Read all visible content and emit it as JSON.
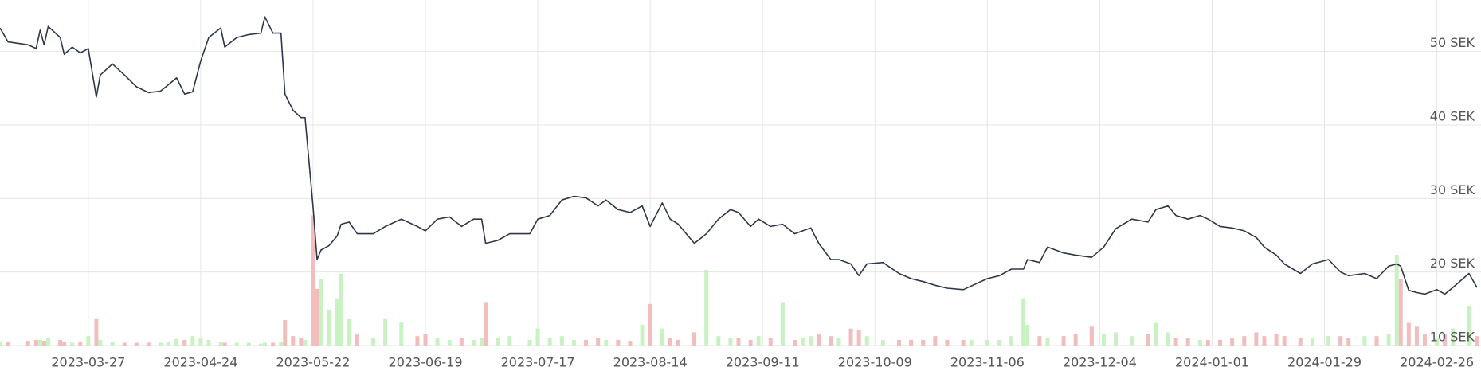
{
  "chart_data": {
    "type": "line",
    "x": [
      "2023-03-05",
      "2023-03-07",
      "2023-03-12",
      "2023-03-14",
      "2023-03-15",
      "2023-03-16",
      "2023-03-17",
      "2023-03-20",
      "2023-03-21",
      "2023-03-23",
      "2023-03-25",
      "2023-03-27",
      "2023-03-29",
      "2023-03-30",
      "2023-04-02",
      "2023-04-05",
      "2023-04-08",
      "2023-04-11",
      "2023-04-14",
      "2023-04-16",
      "2023-04-18",
      "2023-04-20",
      "2023-04-22",
      "2023-04-24",
      "2023-04-26",
      "2023-04-29",
      "2023-04-30",
      "2023-05-03",
      "2023-05-06",
      "2023-05-09",
      "2023-05-10",
      "2023-05-12",
      "2023-05-14",
      "2023-05-15",
      "2023-05-17",
      "2023-05-19",
      "2023-05-20",
      "2023-05-22",
      "2023-05-23",
      "2023-05-24",
      "2023-05-26",
      "2023-05-28",
      "2023-05-29",
      "2023-05-31",
      "2023-06-02",
      "2023-06-06",
      "2023-06-09",
      "2023-06-13",
      "2023-06-17",
      "2023-06-19",
      "2023-06-22",
      "2023-06-25",
      "2023-06-28",
      "2023-07-01",
      "2023-07-03",
      "2023-07-04",
      "2023-07-07",
      "2023-07-10",
      "2023-07-15",
      "2023-07-17",
      "2023-07-20",
      "2023-07-23",
      "2023-07-26",
      "2023-07-29",
      "2023-08-01",
      "2023-08-03",
      "2023-08-06",
      "2023-08-09",
      "2023-08-12",
      "2023-08-14",
      "2023-08-17",
      "2023-08-19",
      "2023-08-21",
      "2023-08-25",
      "2023-08-28",
      "2023-08-31",
      "2023-09-03",
      "2023-09-05",
      "2023-09-08",
      "2023-09-10",
      "2023-09-13",
      "2023-09-16",
      "2023-09-19",
      "2023-09-21",
      "2023-09-23",
      "2023-09-25",
      "2023-09-28",
      "2023-09-30",
      "2023-10-03",
      "2023-10-05",
      "2023-10-07",
      "2023-10-11",
      "2023-10-15",
      "2023-10-18",
      "2023-10-21",
      "2023-10-24",
      "2023-10-27",
      "2023-10-31",
      "2023-11-02",
      "2023-11-06",
      "2023-11-09",
      "2023-11-12",
      "2023-11-15",
      "2023-11-16",
      "2023-11-19",
      "2023-11-21",
      "2023-11-25",
      "2023-11-28",
      "2023-12-02",
      "2023-12-05",
      "2023-12-08",
      "2023-12-12",
      "2023-12-16",
      "2023-12-18",
      "2023-12-21",
      "2023-12-23",
      "2023-12-26",
      "2023-12-29",
      "2023-12-31",
      "2024-01-03",
      "2024-01-06",
      "2024-01-09",
      "2024-01-12",
      "2024-01-14",
      "2024-01-17",
      "2024-01-19",
      "2024-01-23",
      "2024-01-26",
      "2024-01-30",
      "2024-02-02",
      "2024-02-04",
      "2024-02-08",
      "2024-02-11",
      "2024-02-14",
      "2024-02-16",
      "2024-02-17",
      "2024-02-19",
      "2024-02-21",
      "2024-02-23",
      "2024-02-26",
      "2024-02-28",
      "2024-03-01",
      "2024-03-05",
      "2024-03-07"
    ],
    "series": [
      {
        "color": "#2d3748",
        "values": [
          53.2,
          51.3,
          50.9,
          50.4,
          52.9,
          50.9,
          53.4,
          51.9,
          49.6,
          50.6,
          49.8,
          50.4,
          43.8,
          46.8,
          48.3,
          46.8,
          45.2,
          44.4,
          44.6,
          45.5,
          46.4,
          44.2,
          44.5,
          48.7,
          51.9,
          53.2,
          50.6,
          51.9,
          52.3,
          52.5,
          54.7,
          52.5,
          52.5,
          44.2,
          42.0,
          41.0,
          41.0,
          28.8,
          21.7,
          23.0,
          23.6,
          24.9,
          26.5,
          26.8,
          25.2,
          25.2,
          26.2,
          27.2,
          26.2,
          25.6,
          27.2,
          27.5,
          26.2,
          27.2,
          27.2,
          23.9,
          24.3,
          25.2,
          25.2,
          27.2,
          27.7,
          29.8,
          30.3,
          30.1,
          29.0,
          29.8,
          28.5,
          28.1,
          29.0,
          26.2,
          29.4,
          27.2,
          26.5,
          23.9,
          25.2,
          27.2,
          28.5,
          28.1,
          26.2,
          27.2,
          26.2,
          26.5,
          25.2,
          25.6,
          26.0,
          23.9,
          21.7,
          21.7,
          21.1,
          19.5,
          21.1,
          21.3,
          19.8,
          19.1,
          18.7,
          18.2,
          17.8,
          17.6,
          18.1,
          19.1,
          19.5,
          20.4,
          20.4,
          21.7,
          21.3,
          23.4,
          22.6,
          22.3,
          22.0,
          23.4,
          25.9,
          27.2,
          26.8,
          28.5,
          29.0,
          27.7,
          27.2,
          27.7,
          27.2,
          26.2,
          26.0,
          25.6,
          24.7,
          23.4,
          22.3,
          21.1,
          19.8,
          21.1,
          21.7,
          20.0,
          19.5,
          19.8,
          19.1,
          20.8,
          21.1,
          20.8,
          17.5,
          17.2,
          17.0,
          17.6,
          17.0,
          17.9,
          19.8,
          17.9
        ]
      }
    ],
    "volume": {
      "up_color": "#c9f2c3",
      "down_color": "#f2bdbd",
      "values": [
        4,
        4,
        5,
        6,
        6,
        5,
        8,
        6,
        4,
        3,
        4,
        10,
        28,
        6,
        4,
        3,
        3,
        3,
        3,
        4,
        7,
        6,
        10,
        8,
        6,
        4,
        3,
        3,
        3,
        2,
        3,
        3,
        4,
        27,
        10,
        8,
        6,
        138,
        60,
        70,
        38,
        50,
        76,
        28,
        12,
        8,
        28,
        25,
        10,
        12,
        8,
        6,
        8,
        6,
        8,
        46,
        8,
        10,
        6,
        18,
        8,
        10,
        6,
        6,
        8,
        6,
        6,
        5,
        22,
        44,
        18,
        8,
        6,
        14,
        80,
        10,
        8,
        8,
        6,
        10,
        8,
        46,
        6,
        8,
        10,
        12,
        10,
        8,
        18,
        16,
        10,
        6,
        6,
        6,
        6,
        10,
        6,
        6,
        6,
        6,
        6,
        10,
        50,
        22,
        10,
        8,
        10,
        12,
        20,
        12,
        14,
        10,
        12,
        24,
        14,
        8,
        8,
        6,
        6,
        6,
        8,
        10,
        14,
        10,
        12,
        10,
        8,
        8,
        10,
        10,
        8,
        10,
        10,
        12,
        96,
        70,
        24,
        20,
        12,
        8,
        12,
        18,
        42,
        10
      ]
    },
    "xlim": [
      "2023-03-05",
      "2024-03-08"
    ],
    "xticks": [
      "2023-03-27",
      "2023-04-24",
      "2023-05-22",
      "2023-06-19",
      "2023-07-17",
      "2023-08-14",
      "2023-09-11",
      "2023-10-09",
      "2023-11-06",
      "2023-12-04",
      "2024-01-01",
      "2024-01-29",
      "2024-02-26"
    ],
    "ylim": [
      10,
      57
    ],
    "yticks": [
      {
        "value": 10,
        "label": "10 SEK"
      },
      {
        "value": 20,
        "label": "20 SEK"
      },
      {
        "value": 30,
        "label": "30 SEK"
      },
      {
        "value": 40,
        "label": "40 SEK"
      },
      {
        "value": 50,
        "label": "50 SEK"
      }
    ],
    "grid": true
  }
}
